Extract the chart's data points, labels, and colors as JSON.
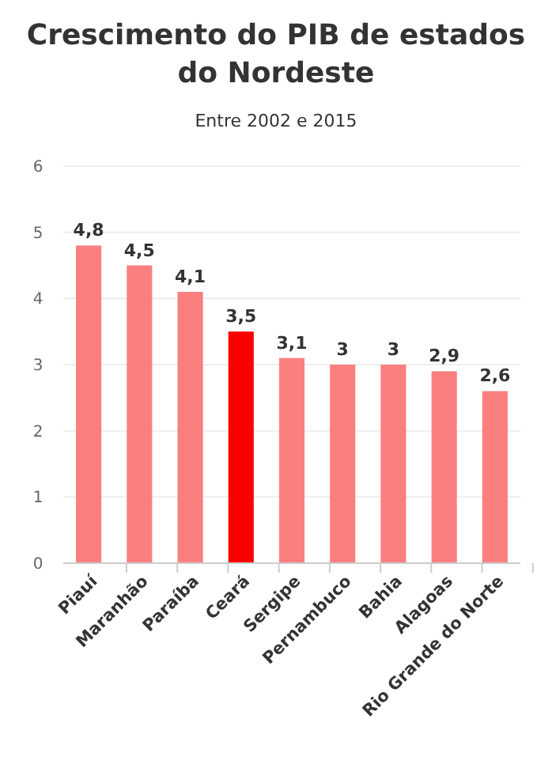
{
  "chart_data": {
    "type": "bar",
    "title": "Crescimento do PIB de estados do Nordeste",
    "subtitle": "Entre 2002 e 2015",
    "categories": [
      "Piauí",
      "Maranhão",
      "Paraíba",
      "Ceará",
      "Sergipe",
      "Pernambuco",
      "Bahia",
      "Alagoas",
      "Rio Grande do Norte"
    ],
    "values": [
      4.8,
      4.5,
      4.1,
      3.5,
      3.1,
      3,
      3,
      2.9,
      2.6
    ],
    "colors": [
      "#fc7f7f",
      "#fc7f7f",
      "#fc7f7f",
      "#fc0000",
      "#fc7f7f",
      "#fc7f7f",
      "#fc7f7f",
      "#fc7f7f",
      "#fc7f7f"
    ],
    "value_labels": [
      "4,8",
      "4,5",
      "4,1",
      "3,5",
      "3,1",
      "3",
      "3",
      "2,9",
      "2,6"
    ],
    "ylim": [
      0,
      6
    ],
    "yticks": [
      0,
      1,
      2,
      3,
      4,
      5,
      6
    ],
    "grid": "y"
  }
}
